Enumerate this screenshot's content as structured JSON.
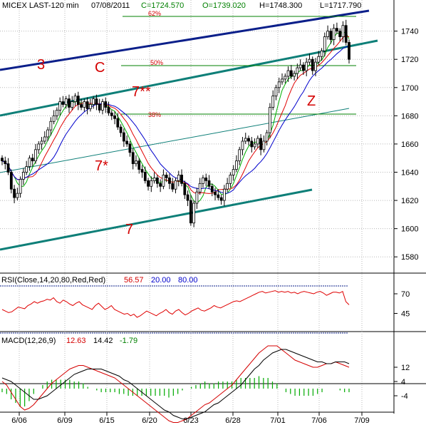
{
  "header": {
    "symbol": "MICEX LAST-120 min",
    "date": "07/08/2011",
    "close": "C=1724.570",
    "open": "O=1739.020",
    "high": "H=1748.300",
    "low": "L=1717.790"
  },
  "rsi_panel": {
    "label": "RSI(Close,14,20,80,Red,Red)",
    "value": "56.57",
    "lower": "20.00",
    "upper": "80.00"
  },
  "macd_panel": {
    "label": "MACD(12,26,9)",
    "macd": "12.63",
    "signal": "14.42",
    "hist": "-1.79"
  },
  "wave_labels": [
    "3",
    "C",
    "7**",
    "7*",
    "7",
    "Z"
  ],
  "fib_labels": [
    "62%",
    "50%",
    "38%"
  ],
  "colors": {
    "candle": "#000000",
    "ma_fast": "#00b000",
    "ma_mid": "#e00000",
    "ma_slow": "#0000cc",
    "channel": "#0e7f78",
    "top_line": "#0b1f8a",
    "fib_line": "#008000",
    "annotation": "#d40000",
    "rsi": "#e00000",
    "macd_hist": "#00aa00"
  },
  "chart_data": [
    {
      "type": "candlestick",
      "title": "MICEX LAST-120 min",
      "x_tick_labels": [
        "6/06",
        "6/09",
        "6/15",
        "6/20",
        "6/23",
        "6/28",
        "7/01",
        "7/06",
        "7/09"
      ],
      "y_tick_labels": [
        "1580",
        "1600",
        "1620",
        "1640",
        "1660",
        "1680",
        "1700",
        "1720",
        "1740"
      ],
      "ylim": [
        1570,
        1757
      ],
      "grid": true,
      "closes": [
        1648,
        1646,
        1640,
        1628,
        1622,
        1625,
        1635,
        1640,
        1644,
        1650,
        1648,
        1656,
        1660,
        1662,
        1665,
        1670,
        1676,
        1680,
        1684,
        1690,
        1688,
        1692,
        1686,
        1690,
        1694,
        1688,
        1686,
        1690,
        1685,
        1688,
        1692,
        1688,
        1684,
        1690,
        1686,
        1682,
        1680,
        1678,
        1672,
        1668,
        1662,
        1660,
        1654,
        1646,
        1648,
        1642,
        1640,
        1634,
        1630,
        1634,
        1636,
        1632,
        1630,
        1638,
        1636,
        1632,
        1628,
        1634,
        1638,
        1632,
        1624,
        1620,
        1604,
        1618,
        1626,
        1632,
        1636,
        1634,
        1630,
        1626,
        1624,
        1622,
        1620,
        1628,
        1632,
        1638,
        1642,
        1648,
        1656,
        1662,
        1664,
        1662,
        1658,
        1660,
        1664,
        1656,
        1662,
        1668,
        1686,
        1694,
        1700,
        1704,
        1706,
        1708,
        1712,
        1708,
        1710,
        1714,
        1716,
        1712,
        1718,
        1720,
        1712,
        1718,
        1722,
        1726,
        1736,
        1740,
        1734,
        1742,
        1740,
        1736,
        1744,
        1732,
        1720
      ],
      "rsi": [
        50,
        48,
        46,
        47,
        50,
        53,
        52,
        51,
        55,
        57,
        60,
        58,
        60,
        61,
        63,
        62,
        65,
        60,
        58,
        62,
        60,
        57,
        55,
        58,
        60,
        56,
        54,
        52,
        50,
        55,
        58,
        54,
        50,
        52,
        55,
        50,
        48,
        46,
        44,
        45,
        42,
        44,
        40,
        42,
        45,
        48,
        46,
        44,
        42,
        45,
        47,
        50,
        46,
        44,
        48,
        50,
        46,
        43,
        45,
        48,
        50,
        52,
        49,
        48,
        50,
        52,
        55,
        53,
        52,
        54,
        56,
        58,
        60,
        61,
        60,
        62,
        64,
        66,
        68,
        70,
        72,
        73,
        71,
        72,
        73,
        74,
        72,
        73,
        72,
        73,
        71,
        72,
        70,
        72,
        73,
        72,
        71,
        70,
        72,
        73,
        71,
        68,
        70,
        72,
        72,
        71,
        73,
        60,
        56
      ],
      "rsi_ylim": [
        20,
        80
      ],
      "rsi_tick_labels": [
        "45",
        "70"
      ],
      "macd": [
        4,
        2,
        -2,
        -6,
        -10,
        -12,
        -11,
        -9,
        -6,
        -3,
        0,
        3,
        5,
        7,
        9,
        11,
        12,
        13,
        13,
        12,
        11,
        10,
        9,
        8,
        7,
        6,
        4,
        2,
        0,
        -2,
        -4,
        -6,
        -8,
        -10,
        -12,
        -14,
        -16,
        -18,
        -19,
        -19,
        -18,
        -17,
        -15,
        -13,
        -11,
        -9,
        -8,
        -6,
        -4,
        -2,
        0,
        2,
        5,
        8,
        11,
        14,
        17,
        20,
        22,
        24,
        24,
        24,
        22,
        20,
        18,
        16,
        15,
        14,
        13,
        12,
        12,
        13,
        14,
        14,
        15,
        14,
        13,
        12
      ],
      "signal": [
        6,
        5,
        4,
        2,
        0,
        -2,
        -4,
        -6,
        -6,
        -5,
        -4,
        -2,
        0,
        2,
        4,
        6,
        8,
        9,
        10,
        11,
        11,
        11,
        11,
        10,
        9,
        8,
        7,
        5,
        4,
        2,
        0,
        -2,
        -4,
        -6,
        -8,
        -10,
        -12,
        -13,
        -15,
        -16,
        -17,
        -17,
        -16,
        -15,
        -14,
        -13,
        -11,
        -9,
        -8,
        -6,
        -4,
        -2,
        0,
        2,
        5,
        8,
        11,
        13,
        16,
        18,
        20,
        21,
        22,
        22,
        21,
        20,
        19,
        18,
        17,
        16,
        15,
        15,
        14,
        14,
        15,
        15,
        15,
        14
      ],
      "macd_ylim": [
        -12,
        26
      ],
      "macd_tick_labels": [
        "-4",
        "4",
        "12"
      ]
    }
  ]
}
